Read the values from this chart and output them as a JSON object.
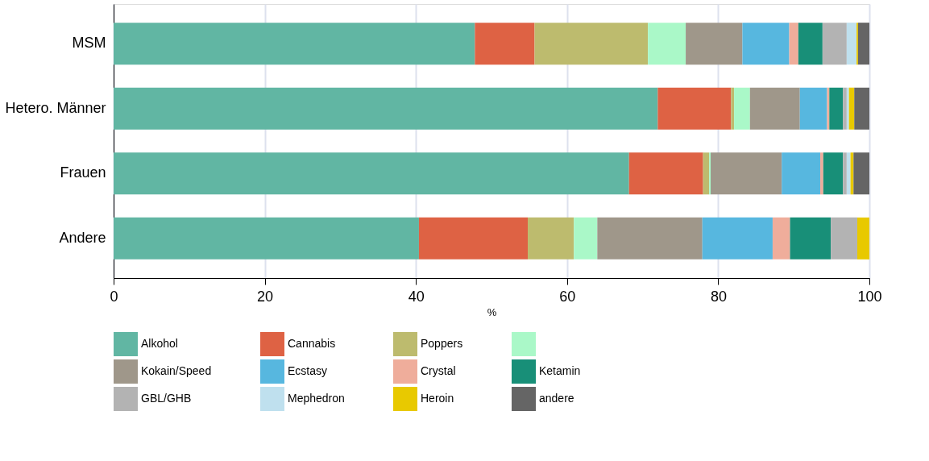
{
  "chart_data": {
    "type": "bar",
    "orientation": "horizontal",
    "stacked": true,
    "xlabel": "%",
    "categories": [
      "MSM",
      "Hetero. Männer",
      "Frauen",
      "Andere"
    ],
    "xlim": [
      0,
      100
    ],
    "xticks": [
      0,
      20,
      40,
      60,
      80,
      100
    ],
    "grid": "x",
    "legend": "bottom",
    "series": [
      {
        "name": "Alkohol",
        "color": "#61b6a3",
        "values": [
          47.8,
          72.0,
          68.2,
          40.4
        ]
      },
      {
        "name": "Cannabis",
        "color": "#de6244",
        "values": [
          7.9,
          9.7,
          9.8,
          14.4
        ]
      },
      {
        "name": "Poppers",
        "color": "#bdbb6e",
        "values": [
          15.0,
          0.4,
          0.8,
          6.1
        ]
      },
      {
        "color": "#aaf8c8",
        "values": [
          5.0,
          2.1,
          0.2,
          3.1
        ]
      },
      {
        "name": "Kokain/Speed",
        "color": "#9f978a",
        "values": [
          7.5,
          6.6,
          9.4,
          13.9
        ]
      },
      {
        "name": "Ecstasy",
        "color": "#57b7df",
        "values": [
          6.2,
          3.6,
          5.1,
          9.3
        ]
      },
      {
        "name": "Crystal",
        "color": "#efad9b",
        "values": [
          1.2,
          0.3,
          0.4,
          2.3
        ]
      },
      {
        "name": "Ketamin",
        "color": "#188f78",
        "values": [
          3.2,
          1.8,
          2.6,
          5.4
        ]
      },
      {
        "name": "GBL/GHB",
        "color": "#b3b3b3",
        "values": [
          3.2,
          0.5,
          0.5,
          3.5
        ]
      },
      {
        "name": "Mephedron",
        "color": "#bfe0ee",
        "values": [
          1.3,
          0.3,
          0.5,
          0
        ]
      },
      {
        "name": "Heroin",
        "color": "#e8c900",
        "values": [
          0.2,
          0.7,
          0.4,
          1.6
        ]
      },
      {
        "name": "andere",
        "color": "#656565",
        "values": [
          1.5,
          2.0,
          2.1,
          0
        ]
      }
    ]
  }
}
